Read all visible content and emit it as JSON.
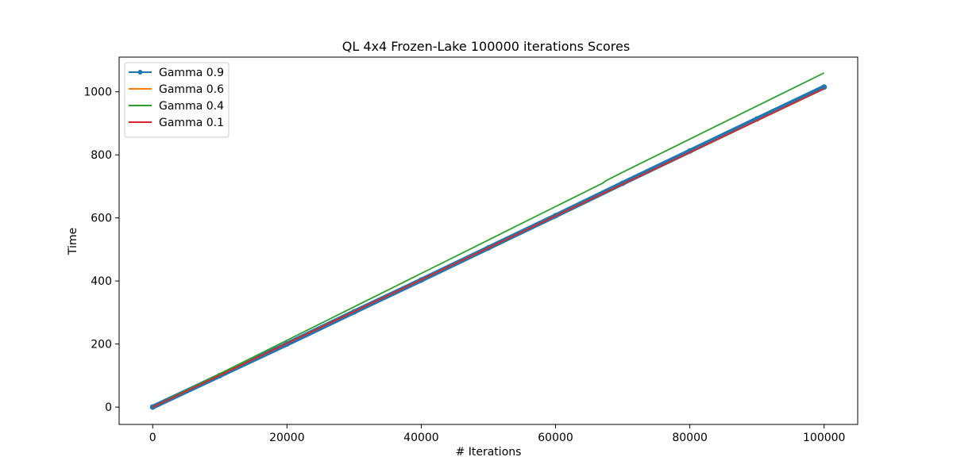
{
  "chart_data": {
    "type": "line",
    "title": "QL 4x4 Frozen-Lake 100000 iterations  Scores",
    "xlabel": "# Iterations",
    "ylabel": "Time",
    "xlim": [
      -5000,
      105000
    ],
    "ylim": [
      -55,
      1110
    ],
    "xticks": [
      0,
      20000,
      40000,
      60000,
      80000,
      100000
    ],
    "yticks": [
      0,
      200,
      400,
      600,
      800,
      1000
    ],
    "xtick_labels": [
      "0",
      "20000",
      "40000",
      "60000",
      "80000",
      "100000"
    ],
    "ytick_labels": [
      "0",
      "200",
      "400",
      "600",
      "800",
      "1000"
    ],
    "grid": false,
    "legend_position": "upper-left",
    "series": [
      {
        "name": "Gamma 0.9",
        "color": "#1f77b4",
        "marker": "dot",
        "x": [
          0,
          10000,
          20000,
          30000,
          40000,
          50000,
          60000,
          70000,
          80000,
          90000,
          100000
        ],
        "y": [
          0,
          100,
          200,
          302,
          403,
          505,
          607,
          710,
          812,
          914,
          1015
        ]
      },
      {
        "name": "Gamma 0.6",
        "color": "#ff7f0e",
        "marker": "none",
        "x": [
          0,
          10000,
          20000,
          30000,
          40000,
          50000,
          60000,
          70000,
          80000,
          90000,
          100000
        ],
        "y": [
          0,
          101,
          202,
          303,
          404,
          505,
          606,
          707,
          808,
          909,
          1010
        ]
      },
      {
        "name": "Gamma 0.4",
        "color": "#2ca02c",
        "marker": "none",
        "x": [
          0,
          10000,
          20000,
          30000,
          40000,
          50000,
          60000,
          67000,
          67500,
          70000,
          80000,
          90000,
          100000
        ],
        "y": [
          0,
          106,
          212,
          318,
          424,
          530,
          636,
          710,
          718,
          745,
          850,
          955,
          1060
        ]
      },
      {
        "name": "Gamma 0.1",
        "color": "#d62728",
        "marker": "none",
        "x": [
          0,
          10000,
          20000,
          30000,
          40000,
          50000,
          60000,
          70000,
          80000,
          90000,
          100000
        ],
        "y": [
          0,
          101,
          202,
          303,
          404,
          505,
          606,
          707,
          808,
          909,
          1010
        ]
      }
    ]
  }
}
